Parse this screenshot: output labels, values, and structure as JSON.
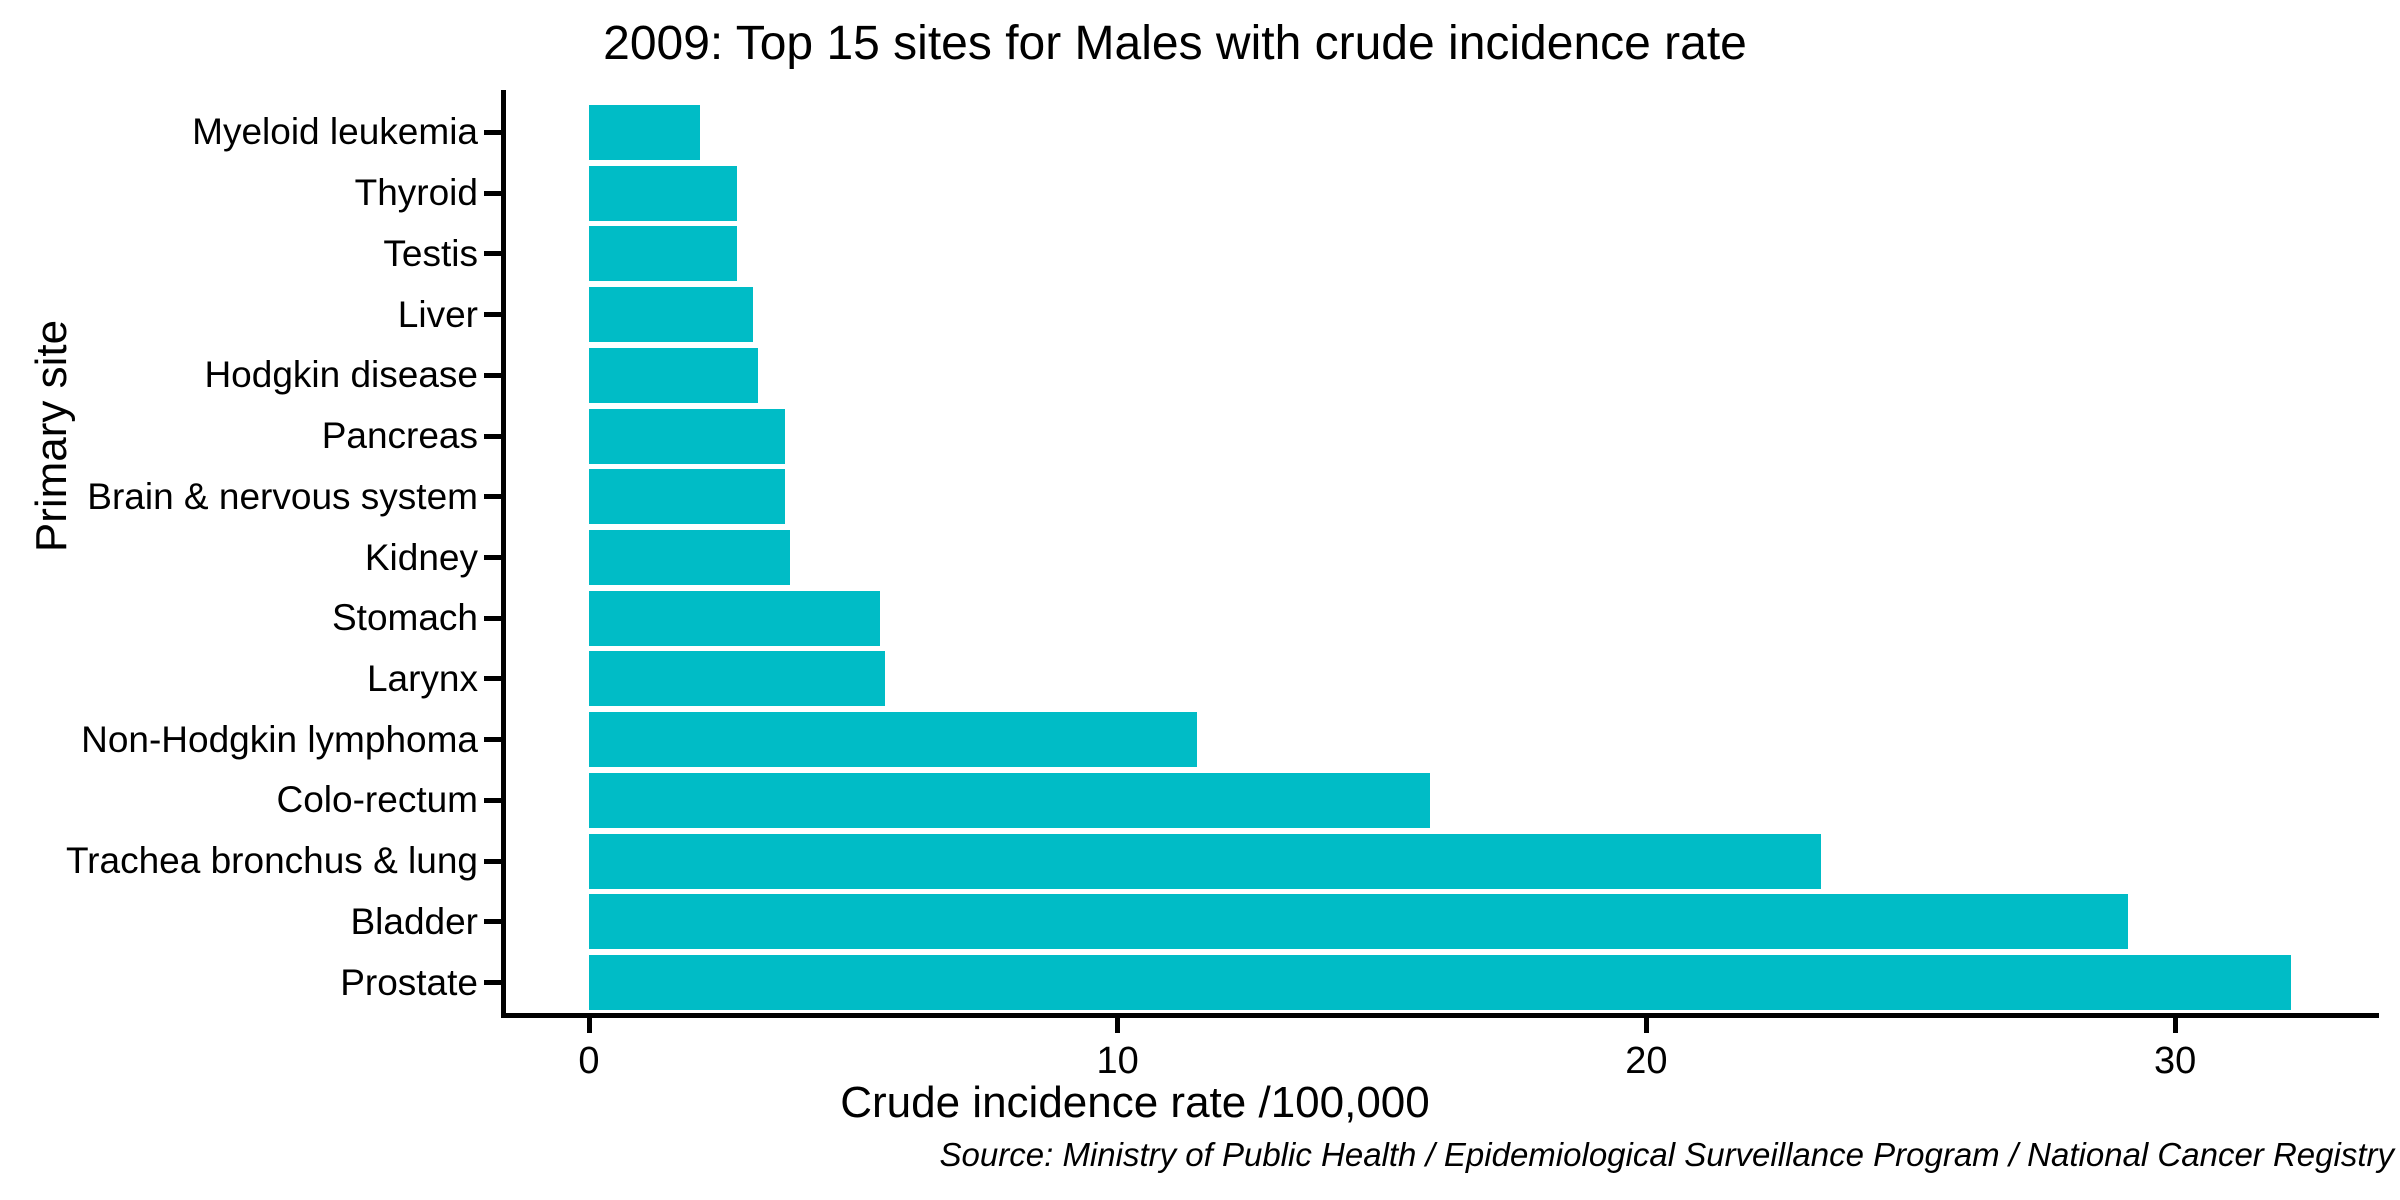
{
  "chart_data": {
    "type": "bar",
    "orientation": "horizontal",
    "title": "2009: Top 15 sites for Males with crude incidence rate",
    "xlabel": "Crude incidence rate /100,000",
    "ylabel": "Primary site",
    "source_note": "Source: Ministry of Public Health / Epidemiological Surveillance Program / National Cancer Registry",
    "categories": [
      "Myeloid leukemia",
      "Thyroid",
      "Testis",
      "Liver",
      "Hodgkin disease",
      "Pancreas",
      "Brain & nervous system",
      "Kidney",
      "Stomach",
      "Larynx",
      "Non-Hodgkin lymphoma",
      "Colo-rectum",
      "Trachea bronchus & lung",
      "Bladder",
      "Prostate"
    ],
    "values": [
      2.1,
      2.8,
      2.8,
      3.1,
      3.2,
      3.7,
      3.7,
      3.8,
      5.5,
      5.6,
      11.5,
      15.9,
      23.3,
      29.1,
      32.2
    ],
    "x_ticks": [
      "0",
      "10",
      "20",
      "30"
    ],
    "x_tick_values": [
      0,
      10,
      20,
      30
    ],
    "xlim": [
      -1.6,
      33.8
    ],
    "bar_color": "#00bcc6",
    "axis_color": "#000000",
    "grid": false,
    "legend": false
  }
}
